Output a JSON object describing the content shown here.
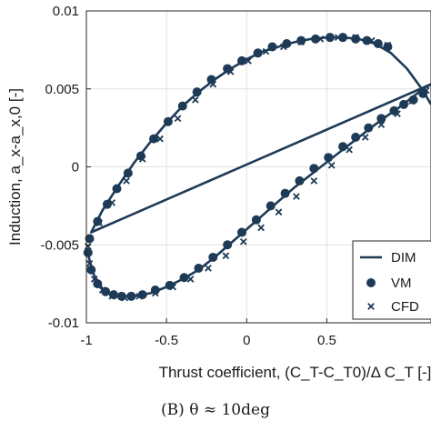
{
  "chart_data": {
    "type": "line",
    "caption": "(B) θ ≈ 10deg",
    "xlabel": "Thrust coefficient, (C_T-C_T0)/Δ C_T [-]",
    "ylabel": "Induction, a_x-a_x,0 [-]",
    "xlim": [
      -1,
      1.15
    ],
    "ylim": [
      -0.01,
      0.01
    ],
    "x_ticks": [
      "-1",
      "-0.5",
      "0",
      "0.5"
    ],
    "y_ticks": [
      "-0.01",
      "-0.005",
      "0",
      "0.005",
      "0.01"
    ],
    "x_tick_values": [
      -1,
      -0.5,
      0,
      0.5
    ],
    "y_tick_values": [
      -0.01,
      -0.005,
      0,
      0.005,
      0.01
    ],
    "legend": {
      "placement": "bottom-right",
      "entries": [
        "DIM",
        "VM",
        "CFD"
      ]
    },
    "color": "#1d3a57",
    "series": [
      {
        "name": "DIM",
        "style": "line",
        "x": [
          -0.99,
          -0.98,
          -0.95,
          -0.9,
          -0.84,
          -0.77,
          -0.7,
          -0.6,
          -0.5,
          -0.4,
          -0.3,
          -0.2,
          -0.1,
          0.0,
          0.1,
          0.2,
          0.3,
          0.4,
          0.5,
          0.6,
          0.7,
          0.8,
          0.88,
          0.95,
          1.0,
          1.05,
          1.1,
          1.15,
          -0.97,
          -0.9,
          -0.8,
          -0.7,
          -0.6,
          -0.5,
          -0.4,
          -0.3,
          -0.2,
          -0.1,
          0.0,
          0.1,
          0.2,
          0.3,
          0.4,
          0.5,
          0.6,
          0.7,
          0.8,
          0.9,
          1.0,
          1.1,
          1.15
        ],
        "y": [
          -0.0055,
          -0.006,
          -0.007,
          -0.0078,
          -0.0082,
          -0.0083,
          -0.0083,
          -0.0081,
          -0.0077,
          -0.0072,
          -0.0066,
          -0.0058,
          -0.0049,
          -0.004,
          -0.0031,
          -0.0022,
          -0.0013,
          -0.0005,
          0.0003,
          0.0011,
          0.0019,
          0.0027,
          0.0033,
          0.0038,
          0.0042,
          0.0046,
          0.005,
          0.0053,
          -0.0042,
          -0.0028,
          -0.0012,
          0.0003,
          0.0016,
          0.0028,
          0.0039,
          0.0048,
          0.0056,
          0.0063,
          0.0069,
          0.0074,
          0.0077,
          0.008,
          0.0082,
          0.0083,
          0.0083,
          0.0082,
          0.0079,
          0.0073,
          0.0063,
          0.0049,
          0.004
        ]
      },
      {
        "name": "VM",
        "style": "dot",
        "x": [
          -0.99,
          -0.97,
          -0.93,
          -0.88,
          -0.83,
          -0.78,
          -0.72,
          -0.65,
          -0.57,
          -0.48,
          -0.39,
          -0.3,
          -0.21,
          -0.12,
          -0.03,
          0.06,
          0.15,
          0.24,
          0.33,
          0.42,
          0.51,
          0.6,
          0.68,
          0.76,
          0.84,
          0.92,
          0.98,
          1.04,
          1.1,
          -0.98,
          -0.93,
          -0.87,
          -0.81,
          -0.74,
          -0.66,
          -0.58,
          -0.49,
          -0.4,
          -0.31,
          -0.22,
          -0.12,
          -0.03,
          0.07,
          0.16,
          0.25,
          0.34,
          0.43,
          0.52,
          0.6,
          0.68,
          0.75,
          0.82,
          0.88
        ],
        "y": [
          -0.0055,
          -0.0066,
          -0.0075,
          -0.008,
          -0.0082,
          -0.0083,
          -0.0083,
          -0.0082,
          -0.0079,
          -0.0076,
          -0.0071,
          -0.0065,
          -0.0058,
          -0.005,
          -0.0042,
          -0.0034,
          -0.0025,
          -0.0017,
          -0.0009,
          -0.0001,
          0.0006,
          0.0013,
          0.0019,
          0.0025,
          0.0031,
          0.0036,
          0.004,
          0.0043,
          0.0047,
          -0.0046,
          -0.0035,
          -0.0024,
          -0.0014,
          -0.0004,
          0.0007,
          0.0018,
          0.0029,
          0.0039,
          0.0048,
          0.0056,
          0.0063,
          0.0068,
          0.0073,
          0.0077,
          0.0079,
          0.0081,
          0.0082,
          0.0083,
          0.0083,
          0.0082,
          0.0081,
          0.0079,
          0.0077
        ]
      },
      {
        "name": "CFD",
        "style": "x",
        "x": [
          -0.98,
          -0.95,
          -0.9,
          -0.84,
          -0.76,
          -0.67,
          -0.57,
          -0.46,
          -0.35,
          -0.24,
          -0.13,
          -0.02,
          0.09,
          0.2,
          0.31,
          0.42,
          0.53,
          0.64,
          0.74,
          0.84,
          0.94,
          1.03,
          1.12,
          -0.99,
          -0.92,
          -0.84,
          -0.75,
          -0.65,
          -0.54,
          -0.43,
          -0.32,
          -0.21,
          -0.1,
          0.01,
          0.12,
          0.23,
          0.34,
          0.46,
          0.57,
          0.68,
          0.78,
          0.88
        ],
        "y": [
          -0.0062,
          -0.0072,
          -0.0079,
          -0.0083,
          -0.0084,
          -0.0083,
          -0.0081,
          -0.0077,
          -0.0072,
          -0.0065,
          -0.0057,
          -0.0048,
          -0.0039,
          -0.0029,
          -0.0019,
          -0.0009,
          0.0001,
          0.0011,
          0.0019,
          0.0027,
          0.0034,
          0.0042,
          0.0049,
          -0.0051,
          -0.0036,
          -0.0023,
          -0.0009,
          0.0005,
          0.0018,
          0.0031,
          0.0043,
          0.0053,
          0.0061,
          0.0068,
          0.0074,
          0.0077,
          0.008,
          0.0082,
          0.0083,
          0.0083,
          0.0081,
          0.0078
        ]
      }
    ]
  }
}
